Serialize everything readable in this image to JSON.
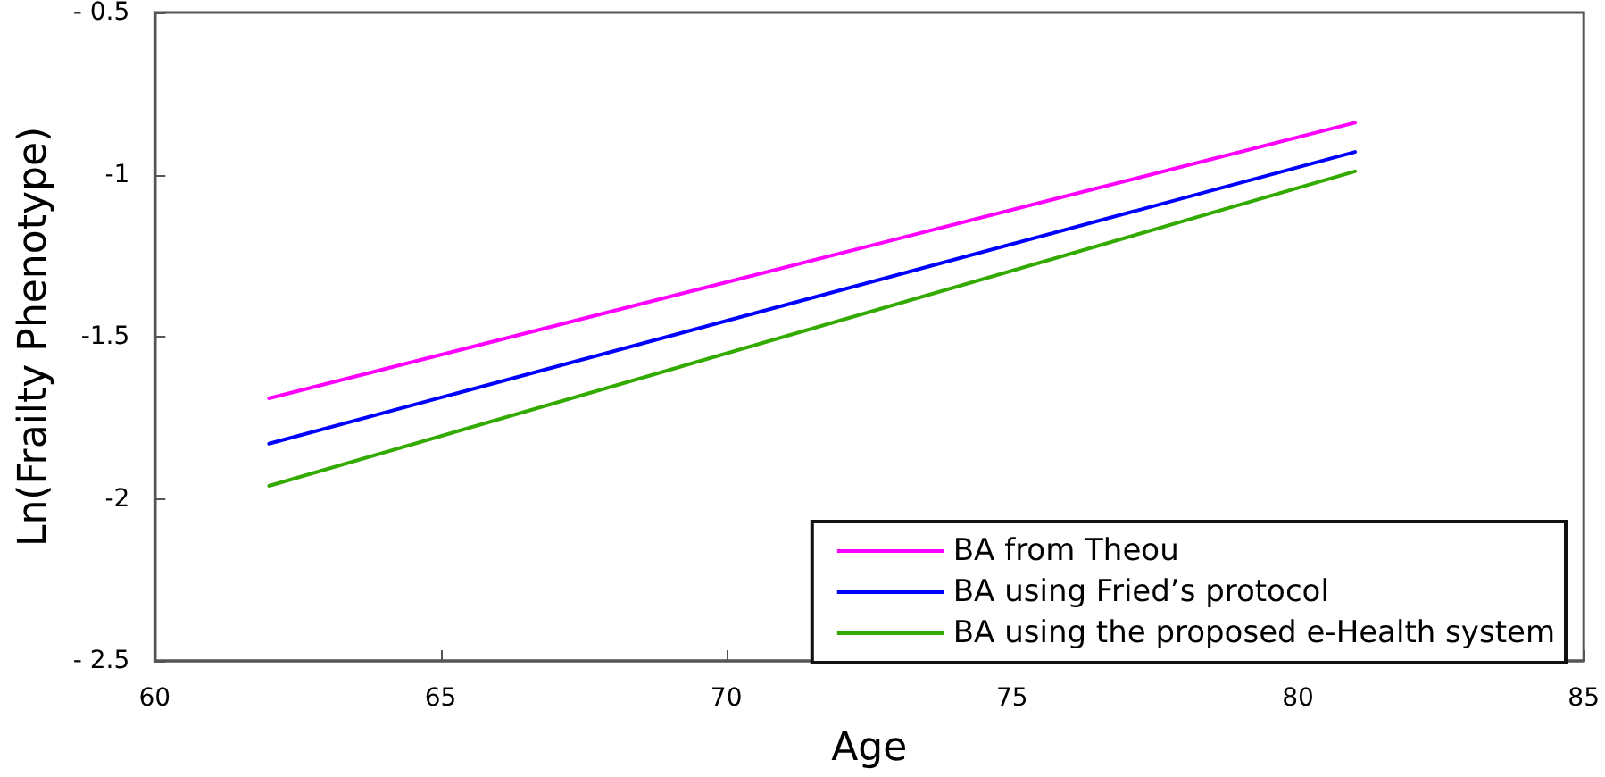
{
  "chart_data": {
    "type": "line",
    "xlabel": "Age",
    "ylabel": "Ln(Frailty Phenotype)",
    "xlim": [
      60,
      85
    ],
    "xticks": [
      60,
      65,
      70,
      75,
      80,
      85
    ],
    "ylim": [
      -2.5,
      -0.5
    ],
    "yticks": [
      {
        "value": -2.5,
        "label": "- 2.5"
      },
      {
        "value": -2,
        "label": "-2"
      },
      {
        "value": -1.5,
        "label": "-1.5"
      },
      {
        "value": -1,
        "label": "-1"
      },
      {
        "value": -0.5,
        "label": "- 0.5"
      }
    ],
    "x": [
      62,
      81
    ],
    "series": [
      {
        "name": "BA from Theou",
        "color": "#ff00ff",
        "values": [
          -1.69,
          -0.84
        ]
      },
      {
        "name": "BA using Fried’s protocol",
        "color": "#0000ff",
        "values": [
          -1.83,
          -0.93
        ]
      },
      {
        "name": "BA using the proposed e-Health system",
        "color": "#33aa00",
        "values": [
          -1.96,
          -0.99
        ]
      }
    ],
    "legend": "bottom right",
    "grid": false,
    "marker": "none",
    "line_style": "solid"
  }
}
